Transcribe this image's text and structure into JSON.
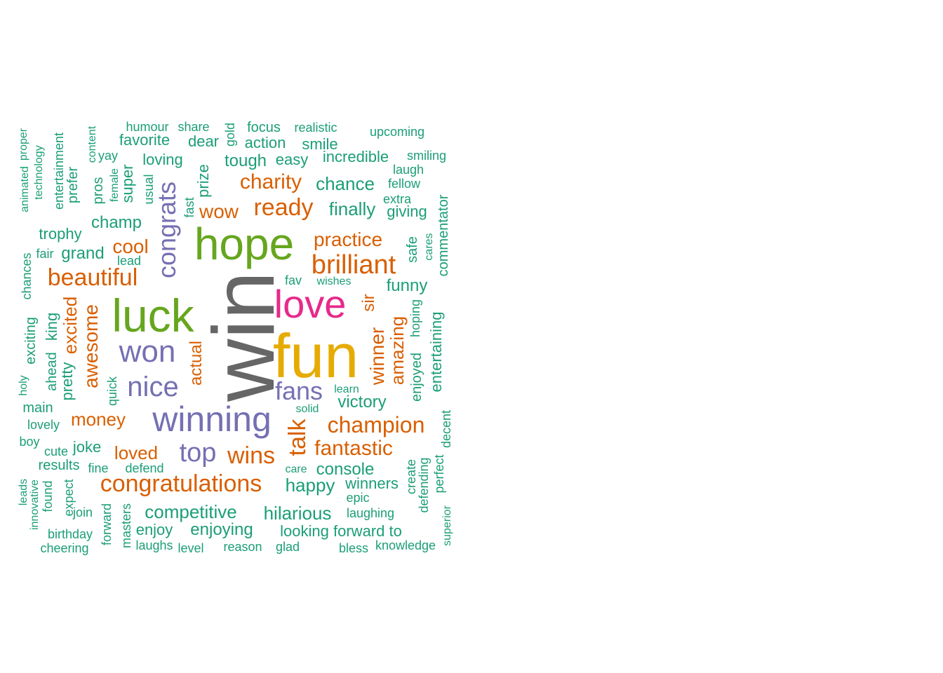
{
  "palette": {
    "teal": "#1b9e77",
    "orange": "#d95f02",
    "purple": "#7570b3",
    "pink": "#e7298a",
    "green": "#66a61e",
    "gold": "#e6ab02",
    "gray": "#666666"
  },
  "words": [
    {
      "text": "win",
      "color": "gray"
    },
    {
      "text": "fun",
      "color": "gold"
    },
    {
      "text": "hope",
      "color": "green"
    },
    {
      "text": "luck",
      "color": "green"
    },
    {
      "text": "love",
      "color": "pink"
    },
    {
      "text": "winning",
      "color": "purple"
    },
    {
      "text": "won",
      "color": "purple"
    },
    {
      "text": "congrats",
      "color": "purple"
    },
    {
      "text": "nice",
      "color": "purple"
    },
    {
      "text": "fans",
      "color": "purple"
    },
    {
      "text": "top",
      "color": "purple"
    },
    {
      "text": "congratulations",
      "color": "orange"
    },
    {
      "text": "brilliant",
      "color": "orange"
    },
    {
      "text": "beautiful",
      "color": "orange"
    },
    {
      "text": "ready",
      "color": "orange"
    },
    {
      "text": "champion",
      "color": "orange"
    },
    {
      "text": "wins",
      "color": "orange"
    },
    {
      "text": "awesome",
      "color": "orange"
    },
    {
      "text": "talk",
      "color": "orange"
    },
    {
      "text": "fantastic",
      "color": "orange"
    },
    {
      "text": "charity",
      "color": "orange"
    },
    {
      "text": "practice",
      "color": "orange"
    },
    {
      "text": "amazing",
      "color": "orange"
    },
    {
      "text": "winner",
      "color": "orange"
    },
    {
      "text": "money",
      "color": "orange"
    },
    {
      "text": "loved",
      "color": "orange"
    },
    {
      "text": "cool",
      "color": "orange"
    },
    {
      "text": "wow",
      "color": "orange"
    },
    {
      "text": "excited",
      "color": "orange"
    },
    {
      "text": "actual",
      "color": "orange"
    },
    {
      "text": "sir",
      "color": "orange"
    },
    {
      "text": "competitive",
      "color": "teal"
    },
    {
      "text": "hilarious",
      "color": "teal"
    },
    {
      "text": "enjoying",
      "color": "teal"
    },
    {
      "text": "looking forward to",
      "color": "teal"
    },
    {
      "text": "happy",
      "color": "teal"
    },
    {
      "text": "console",
      "color": "teal"
    },
    {
      "text": "victory",
      "color": "teal"
    },
    {
      "text": "finally",
      "color": "teal"
    },
    {
      "text": "chance",
      "color": "teal"
    },
    {
      "text": "tough",
      "color": "teal"
    },
    {
      "text": "incredible",
      "color": "teal"
    },
    {
      "text": "champ",
      "color": "teal"
    },
    {
      "text": "grand",
      "color": "teal"
    },
    {
      "text": "funny",
      "color": "teal"
    },
    {
      "text": "winners",
      "color": "teal"
    },
    {
      "text": "entertaining",
      "color": "teal"
    },
    {
      "text": "enjoyed",
      "color": "teal"
    },
    {
      "text": "pretty",
      "color": "teal"
    },
    {
      "text": "super",
      "color": "teal"
    },
    {
      "text": "prize",
      "color": "teal"
    },
    {
      "text": "joke",
      "color": "teal"
    },
    {
      "text": "enjoy",
      "color": "teal"
    },
    {
      "text": "results",
      "color": "teal"
    },
    {
      "text": "trophy",
      "color": "teal"
    },
    {
      "text": "loving",
      "color": "teal"
    },
    {
      "text": "dear",
      "color": "teal"
    },
    {
      "text": "action",
      "color": "teal"
    },
    {
      "text": "easy",
      "color": "teal"
    },
    {
      "text": "favorite",
      "color": "teal"
    },
    {
      "text": "smile",
      "color": "teal"
    },
    {
      "text": "focus",
      "color": "teal"
    },
    {
      "text": "giving",
      "color": "teal"
    },
    {
      "text": "king",
      "color": "teal"
    },
    {
      "text": "ahead",
      "color": "teal"
    },
    {
      "text": "exciting",
      "color": "teal"
    },
    {
      "text": "main",
      "color": "teal"
    },
    {
      "text": "lovely",
      "color": "teal"
    },
    {
      "text": "safe",
      "color": "teal"
    },
    {
      "text": "commentator",
      "color": "teal"
    },
    {
      "text": "epic",
      "color": "teal"
    },
    {
      "text": "reason",
      "color": "teal"
    },
    {
      "text": "glad",
      "color": "teal"
    },
    {
      "text": "bless",
      "color": "teal"
    },
    {
      "text": "knowledge",
      "color": "teal"
    },
    {
      "text": "level",
      "color": "teal"
    },
    {
      "text": "laughs",
      "color": "teal"
    },
    {
      "text": "cheering",
      "color": "teal"
    },
    {
      "text": "birthday",
      "color": "teal"
    },
    {
      "text": "laughing",
      "color": "teal"
    },
    {
      "text": "defend",
      "color": "teal"
    },
    {
      "text": "fine",
      "color": "teal"
    },
    {
      "text": "cute",
      "color": "teal"
    },
    {
      "text": "boy",
      "color": "teal"
    },
    {
      "text": "care",
      "color": "teal"
    },
    {
      "text": "solid",
      "color": "teal"
    },
    {
      "text": "learn",
      "color": "teal"
    },
    {
      "text": "fav",
      "color": "teal"
    },
    {
      "text": "wishes",
      "color": "teal"
    },
    {
      "text": "lead",
      "color": "teal"
    },
    {
      "text": "fair",
      "color": "teal"
    },
    {
      "text": "chances",
      "color": "teal"
    },
    {
      "text": "holy",
      "color": "teal"
    },
    {
      "text": "quick",
      "color": "teal"
    },
    {
      "text": "hoping",
      "color": "teal"
    },
    {
      "text": "cares",
      "color": "teal"
    },
    {
      "text": "extra",
      "color": "teal"
    },
    {
      "text": "fellow",
      "color": "teal"
    },
    {
      "text": "laugh",
      "color": "teal"
    },
    {
      "text": "smiling",
      "color": "teal"
    },
    {
      "text": "upcoming",
      "color": "teal"
    },
    {
      "text": "realistic",
      "color": "teal"
    },
    {
      "text": "share",
      "color": "teal"
    },
    {
      "text": "humour",
      "color": "teal"
    },
    {
      "text": "gold",
      "color": "teal"
    },
    {
      "text": "yay",
      "color": "teal"
    },
    {
      "text": "content",
      "color": "teal"
    },
    {
      "text": "pros",
      "color": "teal"
    },
    {
      "text": "female",
      "color": "teal"
    },
    {
      "text": "usual",
      "color": "teal"
    },
    {
      "text": "fast",
      "color": "teal"
    },
    {
      "text": "prefer",
      "color": "teal"
    },
    {
      "text": "entertainment",
      "color": "teal"
    },
    {
      "text": "technology",
      "color": "teal"
    },
    {
      "text": "proper",
      "color": "teal"
    },
    {
      "text": "animated",
      "color": "teal"
    },
    {
      "text": "leads",
      "color": "teal"
    },
    {
      "text": "innovative",
      "color": "teal"
    },
    {
      "text": "found",
      "color": "teal"
    },
    {
      "text": "expect",
      "color": "teal"
    },
    {
      "text": "join",
      "color": "teal"
    },
    {
      "text": "forward",
      "color": "teal"
    },
    {
      "text": "masters",
      "color": "teal"
    },
    {
      "text": "create",
      "color": "teal"
    },
    {
      "text": "defending",
      "color": "teal"
    },
    {
      "text": "perfect",
      "color": "teal"
    },
    {
      "text": "decent",
      "color": "teal"
    },
    {
      "text": "superior",
      "color": "teal"
    }
  ]
}
